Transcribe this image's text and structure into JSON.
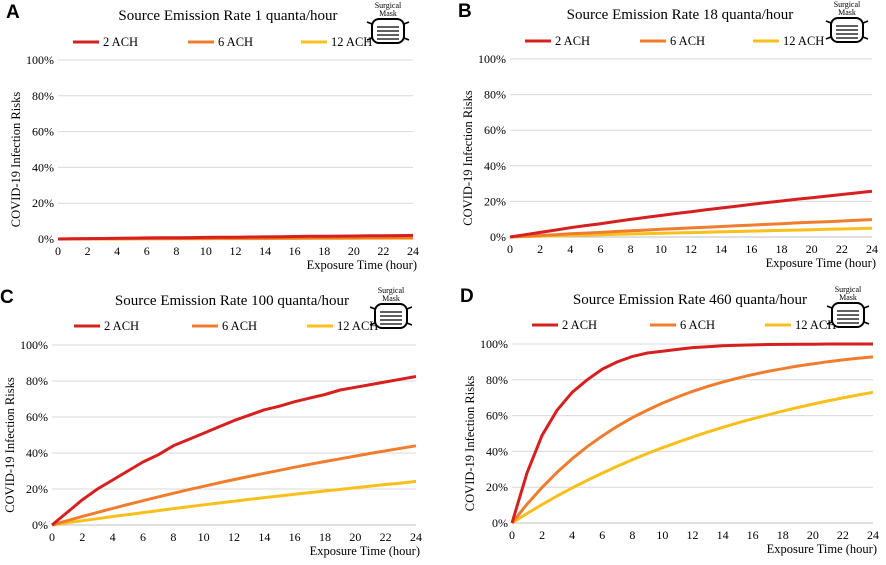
{
  "figure": {
    "mask_label_line1": "Surgical",
    "mask_label_line2": "Mask"
  },
  "chart_data": [
    {
      "panel": "A",
      "type": "line",
      "title": "Source Emission Rate 1 quanta/hour",
      "xlabel": "Exposure Time (hour)",
      "ylabel": "COVID-19 Infection Risks",
      "xlim": [
        0,
        24
      ],
      "ylim": [
        0,
        100
      ],
      "xticks": [
        "0",
        "2",
        "4",
        "6",
        "8",
        "10",
        "12",
        "14",
        "16",
        "18",
        "20",
        "22",
        "24"
      ],
      "yticks": [
        "0%",
        "20%",
        "40%",
        "60%",
        "80%",
        "100%"
      ],
      "grid": true,
      "legend_position": "top",
      "x": [
        0,
        1,
        2,
        3,
        4,
        5,
        6,
        7,
        8,
        9,
        10,
        11,
        12,
        13,
        14,
        15,
        16,
        17,
        18,
        19,
        20,
        21,
        22,
        23,
        24
      ],
      "series": [
        {
          "name": "2 ACH",
          "color": "#d62020",
          "values": [
            0,
            0.1,
            0.2,
            0.3,
            0.4,
            0.5,
            0.6,
            0.7,
            0.7,
            0.8,
            0.9,
            1.0,
            1.0,
            1.1,
            1.2,
            1.3,
            1.4,
            1.5,
            1.5,
            1.6,
            1.7,
            1.8,
            1.8,
            1.9,
            2.0
          ]
        },
        {
          "name": "6 ACH",
          "color": "#f07d2e",
          "values": [
            0,
            0.03,
            0.07,
            0.1,
            0.13,
            0.17,
            0.2,
            0.24,
            0.27,
            0.3,
            0.34,
            0.37,
            0.4,
            0.44,
            0.47,
            0.5,
            0.54,
            0.57,
            0.6,
            0.64,
            0.67,
            0.7,
            0.74,
            0.77,
            0.8
          ]
        },
        {
          "name": "12 ACH",
          "color": "#f9bf1c",
          "values": [
            0,
            0.02,
            0.04,
            0.05,
            0.07,
            0.09,
            0.11,
            0.13,
            0.14,
            0.16,
            0.18,
            0.2,
            0.22,
            0.23,
            0.25,
            0.27,
            0.29,
            0.31,
            0.32,
            0.34,
            0.36,
            0.38,
            0.4,
            0.41,
            0.43
          ]
        }
      ]
    },
    {
      "panel": "B",
      "type": "line",
      "title": "Source Emission Rate 18 quanta/hour",
      "xlabel": "Exposure Time (hour)",
      "ylabel": "COVID-19 Infection Risks",
      "xlim": [
        0,
        24
      ],
      "ylim": [
        0,
        100
      ],
      "xticks": [
        "0",
        "2",
        "4",
        "6",
        "8",
        "10",
        "12",
        "14",
        "16",
        "18",
        "20",
        "22",
        "24"
      ],
      "yticks": [
        "0%",
        "20%",
        "40%",
        "60%",
        "80%",
        "100%"
      ],
      "grid": true,
      "legend_position": "top",
      "x": [
        0,
        1,
        2,
        3,
        4,
        5,
        6,
        7,
        8,
        9,
        10,
        11,
        12,
        13,
        14,
        15,
        16,
        17,
        18,
        19,
        20,
        21,
        22,
        23,
        24
      ],
      "series": [
        {
          "name": "2 ACH",
          "color": "#d62020",
          "values": [
            0,
            1.3,
            2.6,
            3.9,
            5.2,
            6.4,
            7.5,
            8.7,
            9.9,
            11.0,
            12.1,
            13.2,
            14.2,
            15.3,
            16.3,
            17.3,
            18.3,
            19.3,
            20.2,
            21.2,
            22.1,
            23.0,
            23.9,
            24.8,
            25.7
          ]
        },
        {
          "name": "6 ACH",
          "color": "#f07d2e",
          "values": [
            0,
            0.4,
            0.9,
            1.3,
            1.8,
            2.2,
            2.6,
            3.1,
            3.5,
            3.9,
            4.3,
            4.7,
            5.1,
            5.5,
            5.9,
            6.3,
            6.7,
            7.1,
            7.5,
            7.9,
            8.3,
            8.6,
            9.0,
            9.4,
            9.8
          ]
        },
        {
          "name": "12 ACH",
          "color": "#f9bf1c",
          "values": [
            0,
            0.2,
            0.4,
            0.7,
            0.9,
            1.1,
            1.3,
            1.5,
            1.7,
            1.9,
            2.1,
            2.3,
            2.5,
            2.7,
            2.9,
            3.1,
            3.3,
            3.5,
            3.7,
            3.9,
            4.1,
            4.3,
            4.5,
            4.7,
            4.9
          ]
        }
      ]
    },
    {
      "panel": "C",
      "type": "line",
      "title": "Source Emission Rate 100 quanta/hour",
      "xlabel": "Exposure Time (hour)",
      "ylabel": "COVID-19 Infection Risks",
      "xlim": [
        0,
        24
      ],
      "ylim": [
        0,
        100
      ],
      "xticks": [
        "0",
        "2",
        "4",
        "6",
        "8",
        "10",
        "12",
        "14",
        "16",
        "18",
        "20",
        "22",
        "24"
      ],
      "yticks": [
        "0%",
        "20%",
        "40%",
        "60%",
        "80%",
        "100%"
      ],
      "grid": true,
      "legend_position": "top",
      "x": [
        0,
        1,
        2,
        3,
        4,
        5,
        6,
        7,
        8,
        9,
        10,
        11,
        12,
        13,
        14,
        15,
        16,
        17,
        18,
        19,
        20,
        21,
        22,
        23,
        24
      ],
      "series": [
        {
          "name": "2 ACH",
          "color": "#d62020",
          "values": [
            0,
            7,
            14,
            20,
            25,
            30,
            35,
            39,
            44,
            47.5,
            51,
            54.5,
            58,
            61,
            64,
            66,
            68.5,
            70.5,
            72.5,
            75,
            76.5,
            78,
            79.5,
            81,
            82.5
          ]
        },
        {
          "name": "6 ACH",
          "color": "#f07d2e",
          "values": [
            0,
            2.4,
            4.8,
            7.0,
            9.2,
            11.4,
            13.5,
            15.6,
            17.6,
            19.6,
            21.5,
            23.4,
            25.2,
            27.0,
            28.7,
            30.4,
            32.1,
            33.7,
            35.3,
            36.8,
            38.3,
            39.8,
            41.2,
            42.6,
            44.0
          ]
        },
        {
          "name": "12 ACH",
          "color": "#f9bf1c",
          "values": [
            0,
            1.2,
            2.4,
            3.5,
            4.7,
            5.8,
            6.9,
            8.0,
            9.1,
            10.1,
            11.2,
            12.2,
            13.2,
            14.2,
            15.2,
            16.1,
            17.1,
            18.0,
            18.9,
            19.8,
            20.7,
            21.6,
            22.5,
            23.3,
            24.2
          ]
        }
      ]
    },
    {
      "panel": "D",
      "type": "line",
      "title": "Source Emission Rate 460 quanta/hour",
      "xlabel": "Exposure Time (hour)",
      "ylabel": "COVID-19 Infection Risks",
      "xlim": [
        0,
        24
      ],
      "ylim": [
        0,
        100
      ],
      "xticks": [
        "0",
        "2",
        "4",
        "6",
        "8",
        "10",
        "12",
        "14",
        "16",
        "18",
        "20",
        "22",
        "24"
      ],
      "yticks": [
        "0%",
        "20%",
        "40%",
        "60%",
        "80%",
        "100%"
      ],
      "grid": true,
      "legend_position": "top",
      "x": [
        0,
        1,
        2,
        3,
        4,
        5,
        6,
        7,
        8,
        9,
        10,
        11,
        12,
        13,
        14,
        15,
        16,
        17,
        18,
        19,
        20,
        21,
        22,
        23,
        24
      ],
      "series": [
        {
          "name": "2 ACH",
          "color": "#d62020",
          "values": [
            0,
            28,
            49,
            63,
            73,
            80,
            86,
            90,
            93,
            95,
            96,
            97,
            98,
            98.5,
            99,
            99.3,
            99.5,
            99.7,
            99.8,
            99.9,
            99.9,
            100,
            100,
            100,
            100
          ]
        },
        {
          "name": "6 ACH",
          "color": "#f07d2e",
          "values": [
            0,
            10.5,
            19.9,
            28.3,
            35.9,
            42.6,
            48.6,
            54.0,
            58.8,
            63.1,
            67.0,
            70.4,
            73.5,
            76.3,
            78.7,
            80.9,
            82.9,
            84.7,
            86.2,
            87.7,
            88.9,
            90.1,
            91.1,
            92.0,
            92.8
          ]
        },
        {
          "name": "12 ACH",
          "color": "#f9bf1c",
          "values": [
            0,
            5.3,
            10.3,
            15.1,
            19.6,
            23.8,
            27.9,
            31.7,
            35.3,
            38.8,
            42.0,
            45.1,
            48.0,
            50.8,
            53.4,
            55.9,
            58.2,
            60.4,
            62.5,
            64.5,
            66.4,
            68.2,
            69.9,
            71.5,
            73.0
          ]
        }
      ]
    }
  ]
}
